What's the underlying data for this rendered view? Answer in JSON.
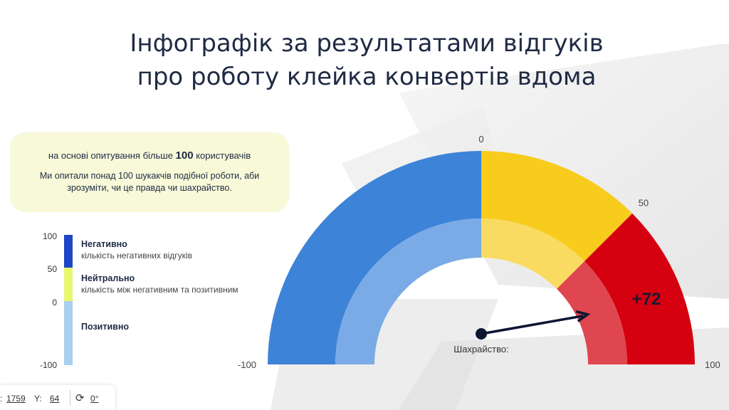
{
  "title": {
    "line1": "Інфографік за результатами відгуків",
    "line2": "про роботу клейка конвертів вдома"
  },
  "info": {
    "prefix": "на основі опитування більше ",
    "bold": "100",
    "suffix": " користувачів",
    "description": "Ми опитали понад 100 шукакчів подібної роботи, аби зрозуміти, чи це правда чи шахрайство."
  },
  "legend": {
    "ticks": [
      "100",
      "50",
      "0",
      "-100"
    ],
    "items": [
      {
        "title": "Негативно",
        "desc": "кількість негативних відгуків",
        "color": "#1f45c7"
      },
      {
        "title": "Нейтрально",
        "desc": "кількість між негативним та позитивним",
        "color": "#e9f770"
      },
      {
        "title": "Позитивно",
        "desc": "",
        "color": "#a9cfee"
      }
    ]
  },
  "chart_data": {
    "type": "gauge",
    "range": [
      -100,
      100
    ],
    "tick_labels": [
      "-100",
      "0",
      "50",
      "100"
    ],
    "segments": [
      {
        "from": -100,
        "to": 0,
        "outer_color": "#3d83d8",
        "inner_color": "#7aabe6"
      },
      {
        "from": 0,
        "to": 50,
        "outer_color": "#f7cc1c",
        "inner_color": "#f9db62"
      },
      {
        "from": 50,
        "to": 100,
        "outer_color": "#d50010",
        "inner_color": "#e0464f"
      }
    ],
    "needle_value": 72,
    "value_label": "+72",
    "needle_label": "Шахрайство:"
  },
  "toolbar": {
    "x_value": "1759",
    "y_label": "Y:",
    "y_value": "64",
    "rotate_icon": "rotate-icon",
    "rotation_value": "0°"
  }
}
